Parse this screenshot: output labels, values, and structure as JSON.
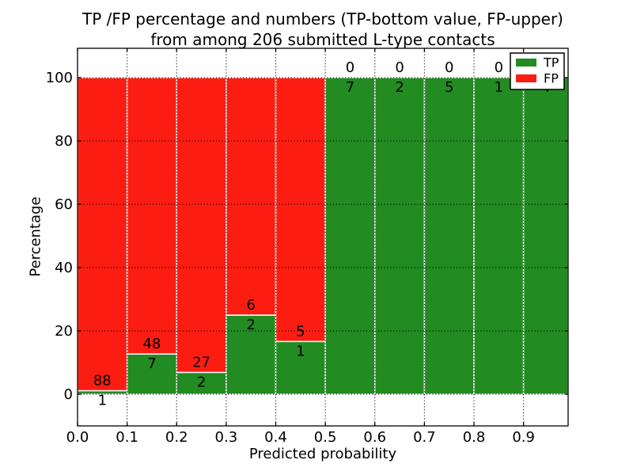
{
  "chart_data": {
    "type": "bar",
    "stacked": true,
    "title_lines": [
      "TP /FP percentage and numbers (TP-bottom value, FP-upper)",
      "from among 206 submitted L-type contacts"
    ],
    "xlabel": "Predicted probability",
    "ylabel": "Percentage",
    "x_tick_labels": [
      "0.0",
      "0.1",
      "0.2",
      "0.3",
      "0.4",
      "0.5",
      "0.6",
      "0.7",
      "0.8",
      "0.9"
    ],
    "x_tick_values": [
      0,
      0.1,
      0.2,
      0.3,
      0.4,
      0.5,
      0.6,
      0.7,
      0.8,
      0.9
    ],
    "y_tick_labels": [
      "0",
      "20",
      "40",
      "60",
      "80",
      "100"
    ],
    "y_tick_values": [
      0,
      20,
      40,
      60,
      80,
      100
    ],
    "xlim": [
      0,
      0.99
    ],
    "ylim": [
      -10,
      109.25
    ],
    "bin_width": 0.1,
    "categories": [
      "0.0-0.1",
      "0.1-0.2",
      "0.2-0.3",
      "0.3-0.4",
      "0.4-0.5",
      "0.5-0.6",
      "0.6-0.7",
      "0.7-0.8",
      "0.8-0.9",
      "0.9-1.0"
    ],
    "series": [
      {
        "name": "TP",
        "color": "#228b22",
        "counts": [
          1,
          7,
          2,
          2,
          1,
          7,
          2,
          5,
          1,
          4
        ]
      },
      {
        "name": "FP",
        "color": "#fb1d12",
        "counts": [
          88,
          48,
          27,
          6,
          5,
          0,
          0,
          0,
          0,
          0
        ]
      }
    ],
    "tp_percentages": [
      1.1,
      12.7,
      6.9,
      25.0,
      16.7,
      100,
      100,
      100,
      100,
      100
    ],
    "total_contacts": 206,
    "legend": {
      "position": "upper right",
      "entries": [
        {
          "label": "TP",
          "color": "#228b22"
        },
        {
          "label": "FP",
          "color": "#fb1d12"
        }
      ]
    },
    "grid": {
      "linestyle": "dotted",
      "color": "#000000"
    },
    "bar_edge_color": "#ffffff",
    "axes_background": "#ffffff",
    "text_color": "#000000"
  }
}
